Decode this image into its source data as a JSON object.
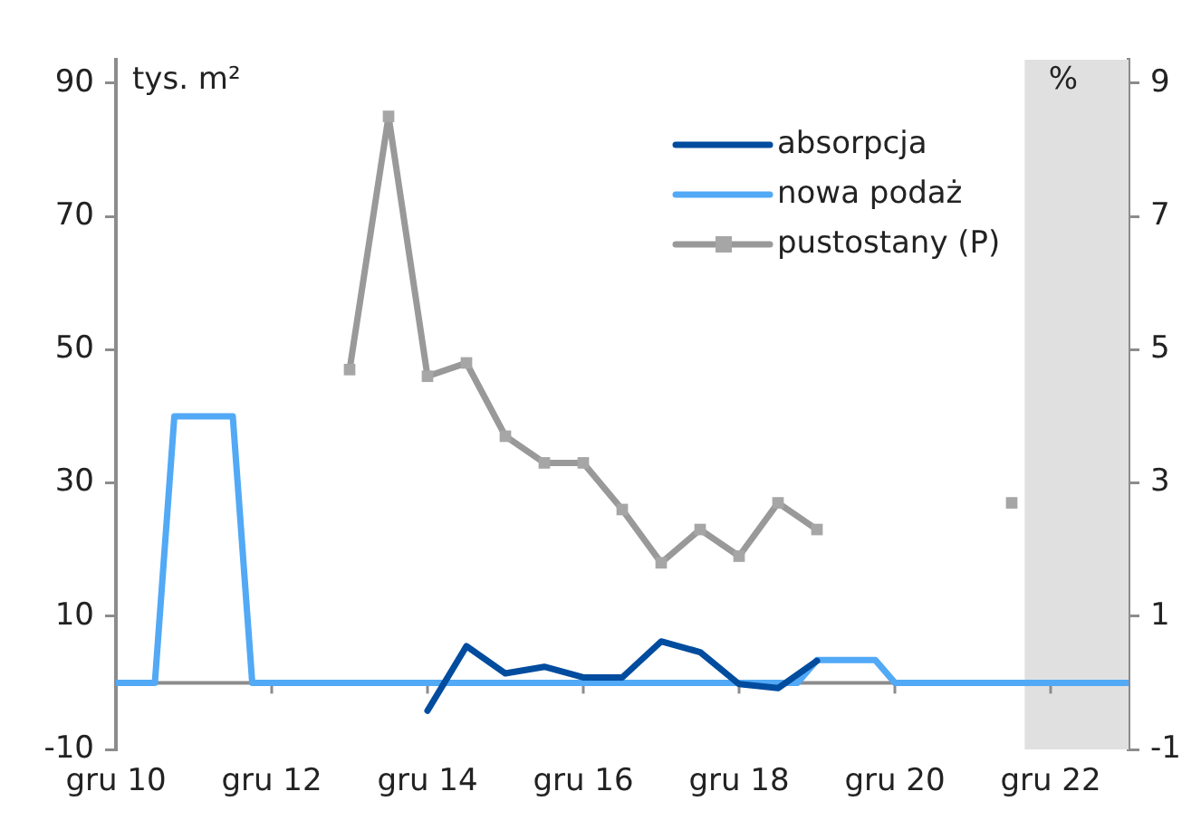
{
  "chart_data": {
    "type": "line",
    "ylabel": "tys. m²",
    "y2label": "%",
    "xlim": [
      "2010-12",
      "2023-12"
    ],
    "xticks": [
      {
        "value": "2010-12",
        "label": "gru 10"
      },
      {
        "value": "2012-12",
        "label": "gru 12"
      },
      {
        "value": "2014-12",
        "label": "gru 14"
      },
      {
        "value": "2016-12",
        "label": "gru 16"
      },
      {
        "value": "2018-12",
        "label": "gru 18"
      },
      {
        "value": "2020-12",
        "label": "gru 20"
      },
      {
        "value": "2022-12",
        "label": "gru 22"
      }
    ],
    "ylim": [
      -10,
      93.5
    ],
    "yticks": [
      -10,
      10,
      30,
      50,
      70,
      90
    ],
    "y2lim": [
      -1,
      9.35
    ],
    "y2ticks": [
      -1,
      1,
      3,
      5,
      7,
      9
    ],
    "series": [
      {
        "name": "absorpcja",
        "color": "#004c9e",
        "marker": "none",
        "x": [
          "2014-12",
          "2015-06",
          "2015-12",
          "2016-06",
          "2016-12",
          "2017-06",
          "2017-12",
          "2018-06",
          "2018-12",
          "2019-06",
          "2019-12"
        ],
        "values": [
          -4.2,
          5.5,
          1.4,
          2.4,
          0.8,
          0.8,
          6.2,
          4.6,
          -0.2,
          -0.8,
          3.3
        ]
      },
      {
        "name": "nowa podaż",
        "color": "#52a9f5",
        "marker": "none",
        "x": [
          "2010-12",
          "2011-06",
          "2011-09",
          "2012-06",
          "2012-09",
          "2019-09",
          "2019-12",
          "2020-09",
          "2020-12",
          "2023-12"
        ],
        "values": [
          0,
          0,
          40,
          40,
          0,
          0,
          3.4,
          3.4,
          0,
          0
        ]
      },
      {
        "name": "pustostany (P)",
        "color": "#999999",
        "marker": "square",
        "axis": "y2",
        "x": [
          "2013-12",
          "2014-06",
          "2014-12",
          "2015-06",
          "2015-12",
          "2016-06",
          "2016-12",
          "2017-06",
          "2017-12",
          "2018-06",
          "2018-12",
          "2019-06",
          "2019-12",
          "2020-06",
          "2022-06"
        ],
        "values": [
          4.7,
          8.5,
          4.6,
          4.8,
          3.7,
          3.3,
          3.3,
          2.6,
          1.8,
          2.3,
          1.9,
          2.7,
          2.3,
          null,
          2.7
        ]
      }
    ],
    "bands": [
      {
        "axis": "x",
        "from": "2022-08",
        "to": "2023-12",
        "color": "#e0e0e0"
      }
    ],
    "grid": false,
    "legend": "top right",
    "line_style": "solid"
  }
}
